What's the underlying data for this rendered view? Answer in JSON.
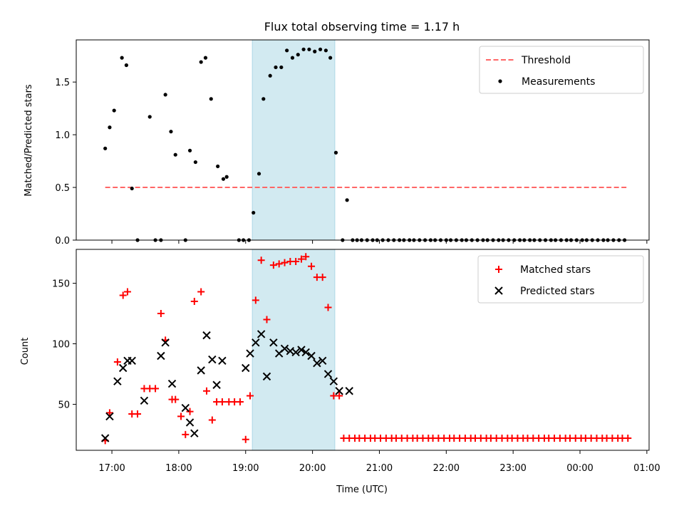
{
  "chart_data": [
    {
      "type": "scatter",
      "title": "Flux total observing time = 1.17 h",
      "xlabel": "",
      "ylabel": "Matched/Predicted stars",
      "xlim": [
        "16:28",
        "01:02"
      ],
      "ylim": [
        0,
        1.9
      ],
      "yticks": [
        0.0,
        0.5,
        1.0,
        1.5
      ],
      "ytick_labels": [
        "0.0",
        "0.5",
        "1.0",
        "1.5"
      ],
      "x_time_unit": "UTC clock time (HH:MM); times after midnight wrap to the next day",
      "highlight_span": {
        "start": "19:06",
        "end": "20:20",
        "color": "#add8e6"
      },
      "legend": {
        "location": "top-right"
      },
      "series": [
        {
          "name": "Threshold",
          "kind": "dashed-line",
          "color": "#ff6666",
          "x": [
            "16:54",
            "00:42"
          ],
          "y": [
            0.5,
            0.5
          ]
        },
        {
          "name": "Measurements",
          "kind": "points",
          "color": "#000000",
          "x": [
            "16:54",
            "16:58",
            "17:02",
            "17:09",
            "17:13",
            "17:18",
            "17:23",
            "17:34",
            "17:39",
            "17:44",
            "17:48",
            "17:53",
            "17:57",
            "18:06",
            "18:10",
            "18:15",
            "18:20",
            "18:24",
            "18:29",
            "18:35",
            "18:40",
            "18:43",
            "18:54",
            "18:58",
            "19:03",
            "19:07",
            "19:12",
            "19:16",
            "19:22",
            "19:27",
            "19:32",
            "19:37",
            "19:42",
            "19:47",
            "19:52",
            "19:57",
            "20:02",
            "20:07",
            "20:12",
            "20:16",
            "20:21",
            "20:27",
            "20:31",
            "20:36",
            "20:40",
            "20:44",
            "20:49",
            "20:54",
            "20:58",
            "21:03",
            "21:08",
            "21:13",
            "21:18",
            "21:22",
            "21:27",
            "21:31",
            "21:36",
            "21:41",
            "21:46",
            "21:50",
            "21:55",
            "22:00",
            "22:04",
            "22:09",
            "22:14",
            "22:18",
            "22:23",
            "22:28",
            "22:33",
            "22:37",
            "22:42",
            "22:47",
            "22:51",
            "22:56",
            "23:01",
            "23:06",
            "23:10",
            "23:15",
            "23:19",
            "23:24",
            "23:29",
            "23:34",
            "23:38",
            "23:43",
            "23:48",
            "23:52",
            "23:57",
            "00:02",
            "00:06",
            "00:11",
            "00:16",
            "00:21",
            "00:25",
            "00:30",
            "00:35",
            "00:40"
          ],
          "y": [
            0.87,
            1.07,
            1.23,
            1.73,
            1.66,
            0.49,
            0.0,
            1.17,
            0.0,
            0.0,
            1.38,
            1.03,
            0.81,
            0.0,
            0.85,
            0.74,
            1.69,
            1.73,
            1.34,
            0.7,
            0.58,
            0.6,
            0.0,
            0.0,
            0.0,
            0.26,
            0.63,
            1.34,
            1.56,
            1.64,
            1.64,
            1.8,
            1.73,
            1.76,
            1.81,
            1.81,
            1.79,
            1.81,
            1.8,
            1.73,
            0.83,
            0.0,
            0.38,
            0.0,
            0.0,
            0.0,
            0.0,
            0.0,
            0.0,
            0.0,
            0.0,
            0.0,
            0.0,
            0.0,
            0.0,
            0.0,
            0.0,
            0.0,
            0.0,
            0.0,
            0.0,
            0.0,
            0.0,
            0.0,
            0.0,
            0.0,
            0.0,
            0.0,
            0.0,
            0.0,
            0.0,
            0.0,
            0.0,
            0.0,
            0.0,
            0.0,
            0.0,
            0.0,
            0.0,
            0.0,
            0.0,
            0.0,
            0.0,
            0.0,
            0.0,
            0.0,
            0.0,
            0.0,
            0.0,
            0.0,
            0.0,
            0.0,
            0.0,
            0.0,
            0.0,
            0.0
          ]
        }
      ]
    },
    {
      "type": "scatter",
      "title": "",
      "xlabel": "Time (UTC)",
      "ylabel": "Count",
      "xlim": [
        "16:28",
        "01:02"
      ],
      "ylim": [
        12,
        178
      ],
      "yticks": [
        50,
        100,
        150
      ],
      "ytick_labels": [
        "50",
        "100",
        "150"
      ],
      "xticks": [
        "17:00",
        "18:00",
        "19:00",
        "20:00",
        "21:00",
        "22:00",
        "23:00",
        "00:00",
        "01:00"
      ],
      "xtick_labels": [
        "17:00",
        "18:00",
        "19:00",
        "20:00",
        "21:00",
        "22:00",
        "23:00",
        "00:00",
        "01:00"
      ],
      "highlight_span": {
        "start": "19:06",
        "end": "20:20",
        "color": "#add8e6"
      },
      "legend": {
        "location": "top-right"
      },
      "series": [
        {
          "name": "Matched stars",
          "marker": "plus",
          "color": "#ff0000",
          "x": [
            "16:54",
            "16:58",
            "17:05",
            "17:10",
            "17:14",
            "17:18",
            "17:23",
            "17:29",
            "17:34",
            "17:39",
            "17:44",
            "17:48",
            "17:54",
            "17:57",
            "18:02",
            "18:06",
            "18:10",
            "18:14",
            "18:20",
            "18:25",
            "18:30",
            "18:34",
            "18:39",
            "18:45",
            "18:50",
            "18:55",
            "19:00",
            "19:04",
            "19:09",
            "19:14",
            "19:19",
            "19:25",
            "19:30",
            "19:35",
            "19:40",
            "19:45",
            "19:50",
            "19:54",
            "19:59",
            "20:04",
            "20:09",
            "20:14",
            "20:19",
            "20:24",
            "20:28",
            "20:33",
            "20:38",
            "20:42",
            "20:47",
            "20:52",
            "20:56",
            "21:01",
            "21:06",
            "21:11",
            "21:15",
            "21:20",
            "21:25",
            "21:30",
            "21:34",
            "21:39",
            "21:44",
            "21:48",
            "21:53",
            "21:58",
            "22:03",
            "22:07",
            "22:12",
            "22:17",
            "22:22",
            "22:26",
            "22:31",
            "22:36",
            "22:40",
            "22:45",
            "22:50",
            "22:55",
            "22:59",
            "23:04",
            "23:09",
            "23:13",
            "23:18",
            "23:23",
            "23:28",
            "23:32",
            "23:37",
            "23:42",
            "23:47",
            "23:51",
            "23:56",
            "00:01",
            "00:05",
            "00:10",
            "00:15",
            "00:20",
            "00:24",
            "00:29",
            "00:34",
            "00:38",
            "00:43"
          ],
          "y": [
            20,
            43,
            85,
            140,
            143,
            42,
            42,
            63,
            63,
            63,
            125,
            103,
            54,
            54,
            40,
            25,
            44,
            135,
            143,
            61,
            37,
            52,
            52,
            52,
            52,
            52,
            21,
            57,
            136,
            169,
            120,
            165,
            166,
            167,
            168,
            168,
            170,
            172,
            164,
            155,
            155,
            130,
            57,
            57,
            22,
            22,
            22,
            22,
            22,
            22,
            22,
            22,
            22,
            22,
            22,
            22,
            22,
            22,
            22,
            22,
            22,
            22,
            22,
            22,
            22,
            22,
            22,
            22,
            22,
            22,
            22,
            22,
            22,
            22,
            22,
            22,
            22,
            22,
            22,
            22,
            22,
            22,
            22,
            22,
            22,
            22,
            22,
            22,
            22,
            22,
            22,
            22,
            22,
            22,
            22,
            22,
            22,
            22,
            22
          ]
        },
        {
          "name": "Predicted stars",
          "marker": "x",
          "color": "#000000",
          "x": [
            "16:54",
            "16:58",
            "17:05",
            "17:10",
            "17:14",
            "17:18",
            "17:29",
            "17:44",
            "17:48",
            "17:54",
            "18:06",
            "18:10",
            "18:14",
            "18:20",
            "18:25",
            "18:30",
            "18:34",
            "18:39",
            "19:00",
            "19:04",
            "19:09",
            "19:14",
            "19:19",
            "19:25",
            "19:30",
            "19:35",
            "19:40",
            "19:45",
            "19:50",
            "19:54",
            "19:59",
            "20:04",
            "20:09",
            "20:14",
            "20:19",
            "20:24",
            "20:33"
          ],
          "y": [
            22,
            40,
            69,
            80,
            86,
            86,
            53,
            90,
            101,
            67,
            47,
            35,
            26,
            78,
            107,
            87,
            66,
            86,
            80,
            92,
            101,
            108,
            73,
            101,
            92,
            96,
            94,
            93,
            95,
            93,
            90,
            84,
            86,
            75,
            69,
            61,
            61
          ]
        }
      ]
    }
  ]
}
